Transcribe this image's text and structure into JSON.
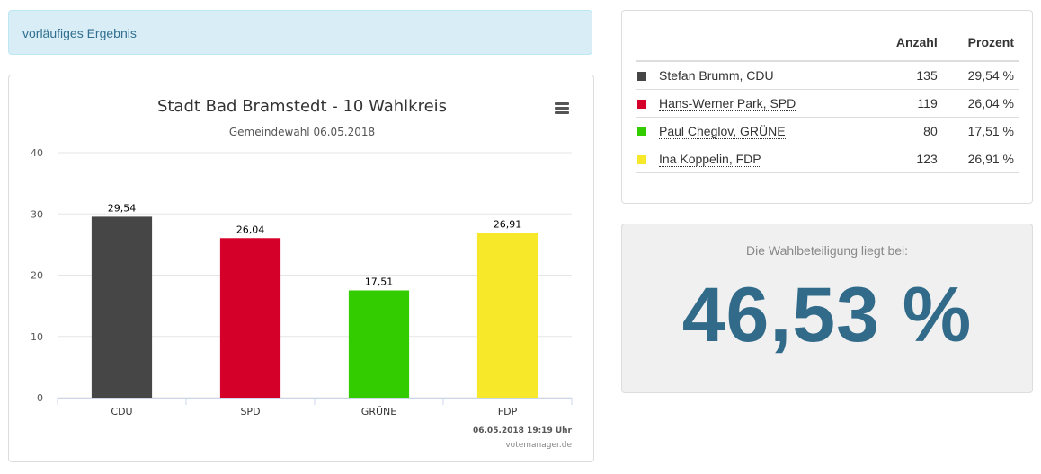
{
  "status": {
    "label": "vorläufiges Ergebnis"
  },
  "chart_data": {
    "type": "bar",
    "title": "Stadt Bad Bramstedt - 10 Wahlkreis",
    "subtitle": "Gemeindewahl 06.05.2018",
    "categories": [
      "CDU",
      "SPD",
      "GRÜNE",
      "FDP"
    ],
    "values": [
      29.54,
      26.04,
      17.51,
      26.91
    ],
    "value_labels": [
      "29,54",
      "26,04",
      "17,51",
      "26,91"
    ],
    "colors": [
      "#464646",
      "#d50029",
      "#33cc00",
      "#f7e92a"
    ],
    "ylim": [
      0,
      40
    ],
    "yticks": [
      0,
      10,
      20,
      30,
      40
    ],
    "grid": true,
    "legend": "none",
    "timestamp": "06.05.2018 19:19 Uhr",
    "credit": "votemanager.de"
  },
  "results": {
    "headers": {
      "count": "Anzahl",
      "percent": "Prozent"
    },
    "rows": [
      {
        "name": "Stefan Brumm, CDU",
        "count": "135",
        "percent": "29,54 %",
        "color": "#464646"
      },
      {
        "name": "Hans-Werner Park, SPD",
        "count": "119",
        "percent": "26,04 %",
        "color": "#d50029"
      },
      {
        "name": "Paul Cheglov, GRÜNE",
        "count": "80",
        "percent": "17,51 %",
        "color": "#33cc00"
      },
      {
        "name": "Ina Koppelin, FDP",
        "count": "123",
        "percent": "26,91 %",
        "color": "#f7e92a"
      }
    ]
  },
  "turnout": {
    "label": "Die Wahlbeteiligung liegt bei:",
    "value": "46,53 %"
  },
  "icons": {
    "chart_menu": "hamburger-menu-icon"
  }
}
